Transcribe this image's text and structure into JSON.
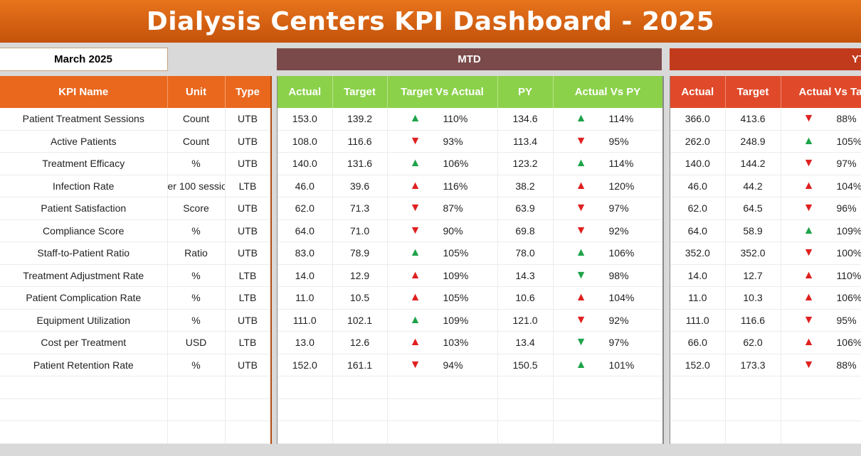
{
  "title": "Dialysis Centers KPI Dashboard - 2025",
  "month": "March 2025",
  "sections": {
    "mtd": "MTD",
    "ytd": "YT"
  },
  "left_headers": [
    "KPI Name",
    "Unit",
    "Type"
  ],
  "mtd_headers": [
    "Actual",
    "Target",
    "Target Vs Actual",
    "PY",
    "Actual Vs PY"
  ],
  "ytd_headers": [
    "Actual",
    "Target",
    "Actual Vs Targ"
  ],
  "colors": {
    "up_good": "#1ea34a",
    "bad": "#e02020"
  },
  "rows": [
    {
      "kpi": "Patient Treatment Sessions",
      "unit": "Count",
      "type": "UTB",
      "m_act": "153.0",
      "m_tgt": "139.2",
      "m_tva": {
        "dir": "up",
        "good": true,
        "pct": "110%"
      },
      "py": "134.6",
      "m_avp": {
        "dir": "up",
        "good": true,
        "pct": "114%"
      },
      "y_act": "366.0",
      "y_tgt": "413.6",
      "y_tva": {
        "dir": "down",
        "good": false,
        "pct": "88%"
      }
    },
    {
      "kpi": "Active Patients",
      "unit": "Count",
      "type": "UTB",
      "m_act": "108.0",
      "m_tgt": "116.6",
      "m_tva": {
        "dir": "down",
        "good": false,
        "pct": "93%"
      },
      "py": "113.4",
      "m_avp": {
        "dir": "down",
        "good": false,
        "pct": "95%"
      },
      "y_act": "262.0",
      "y_tgt": "248.9",
      "y_tva": {
        "dir": "up",
        "good": true,
        "pct": "105%"
      }
    },
    {
      "kpi": "Treatment Efficacy",
      "unit": "%",
      "type": "UTB",
      "m_act": "140.0",
      "m_tgt": "131.6",
      "m_tva": {
        "dir": "up",
        "good": true,
        "pct": "106%"
      },
      "py": "123.2",
      "m_avp": {
        "dir": "up",
        "good": true,
        "pct": "114%"
      },
      "y_act": "140.0",
      "y_tgt": "144.2",
      "y_tva": {
        "dir": "down",
        "good": false,
        "pct": "97%"
      }
    },
    {
      "kpi": "Infection Rate",
      "unit": "er 100 sessio",
      "type": "LTB",
      "m_act": "46.0",
      "m_tgt": "39.6",
      "m_tva": {
        "dir": "up",
        "good": false,
        "pct": "116%"
      },
      "py": "38.2",
      "m_avp": {
        "dir": "up",
        "good": false,
        "pct": "120%"
      },
      "y_act": "46.0",
      "y_tgt": "44.2",
      "y_tva": {
        "dir": "up",
        "good": false,
        "pct": "104%"
      }
    },
    {
      "kpi": "Patient Satisfaction",
      "unit": "Score",
      "type": "UTB",
      "m_act": "62.0",
      "m_tgt": "71.3",
      "m_tva": {
        "dir": "down",
        "good": false,
        "pct": "87%"
      },
      "py": "63.9",
      "m_avp": {
        "dir": "down",
        "good": false,
        "pct": "97%"
      },
      "y_act": "62.0",
      "y_tgt": "64.5",
      "y_tva": {
        "dir": "down",
        "good": false,
        "pct": "96%"
      }
    },
    {
      "kpi": "Compliance Score",
      "unit": "%",
      "type": "UTB",
      "m_act": "64.0",
      "m_tgt": "71.0",
      "m_tva": {
        "dir": "down",
        "good": false,
        "pct": "90%"
      },
      "py": "69.8",
      "m_avp": {
        "dir": "down",
        "good": false,
        "pct": "92%"
      },
      "y_act": "64.0",
      "y_tgt": "58.9",
      "y_tva": {
        "dir": "up",
        "good": true,
        "pct": "109%"
      }
    },
    {
      "kpi": "Staff-to-Patient Ratio",
      "unit": "Ratio",
      "type": "UTB",
      "m_act": "83.0",
      "m_tgt": "78.9",
      "m_tva": {
        "dir": "up",
        "good": true,
        "pct": "105%"
      },
      "py": "78.0",
      "m_avp": {
        "dir": "up",
        "good": true,
        "pct": "106%"
      },
      "y_act": "352.0",
      "y_tgt": "352.0",
      "y_tva": {
        "dir": "down",
        "good": false,
        "pct": "100%"
      }
    },
    {
      "kpi": "Treatment Adjustment Rate",
      "unit": "%",
      "type": "LTB",
      "m_act": "14.0",
      "m_tgt": "12.9",
      "m_tva": {
        "dir": "up",
        "good": false,
        "pct": "109%"
      },
      "py": "14.3",
      "m_avp": {
        "dir": "down",
        "good": true,
        "pct": "98%"
      },
      "y_act": "14.0",
      "y_tgt": "12.7",
      "y_tva": {
        "dir": "up",
        "good": false,
        "pct": "110%"
      }
    },
    {
      "kpi": "Patient Complication Rate",
      "unit": "%",
      "type": "LTB",
      "m_act": "11.0",
      "m_tgt": "10.5",
      "m_tva": {
        "dir": "up",
        "good": false,
        "pct": "105%"
      },
      "py": "10.6",
      "m_avp": {
        "dir": "up",
        "good": false,
        "pct": "104%"
      },
      "y_act": "11.0",
      "y_tgt": "10.3",
      "y_tva": {
        "dir": "up",
        "good": false,
        "pct": "106%"
      }
    },
    {
      "kpi": "Equipment Utilization",
      "unit": "%",
      "type": "UTB",
      "m_act": "111.0",
      "m_tgt": "102.1",
      "m_tva": {
        "dir": "up",
        "good": true,
        "pct": "109%"
      },
      "py": "121.0",
      "m_avp": {
        "dir": "down",
        "good": false,
        "pct": "92%"
      },
      "y_act": "111.0",
      "y_tgt": "116.6",
      "y_tva": {
        "dir": "down",
        "good": false,
        "pct": "95%"
      }
    },
    {
      "kpi": "Cost per Treatment",
      "unit": "USD",
      "type": "LTB",
      "m_act": "13.0",
      "m_tgt": "12.6",
      "m_tva": {
        "dir": "up",
        "good": false,
        "pct": "103%"
      },
      "py": "13.4",
      "m_avp": {
        "dir": "down",
        "good": true,
        "pct": "97%"
      },
      "y_act": "66.0",
      "y_tgt": "62.0",
      "y_tva": {
        "dir": "up",
        "good": false,
        "pct": "106%"
      }
    },
    {
      "kpi": "Patient Retention Rate",
      "unit": "%",
      "type": "UTB",
      "m_act": "152.0",
      "m_tgt": "161.1",
      "m_tva": {
        "dir": "down",
        "good": false,
        "pct": "94%"
      },
      "py": "150.5",
      "m_avp": {
        "dir": "up",
        "good": true,
        "pct": "101%"
      },
      "y_act": "152.0",
      "y_tgt": "173.3",
      "y_tva": {
        "dir": "down",
        "good": false,
        "pct": "88%"
      }
    }
  ],
  "empty_rows": 3
}
